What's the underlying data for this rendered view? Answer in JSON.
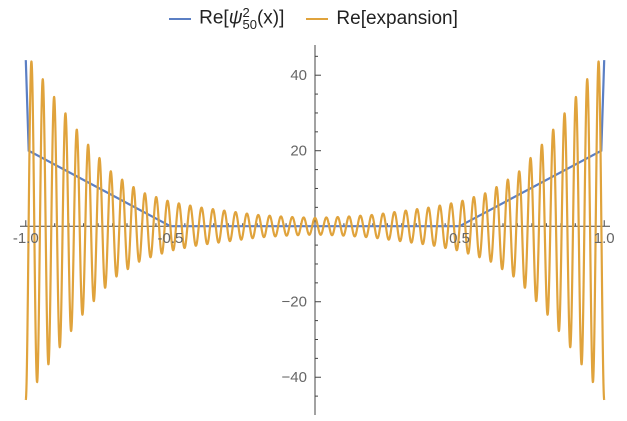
{
  "colors": {
    "series1": "#5b7fc4",
    "series2": "#e0a33c",
    "axis": "#444444",
    "tick_text": "#666666"
  },
  "chart_data": {
    "type": "line",
    "legend_position": "top-center",
    "xlim": [
      -1.02,
      1.02
    ],
    "ylim": [
      -50,
      48
    ],
    "grid": false,
    "x_ticks": [
      {
        "value": -1.0,
        "label": "-1.0"
      },
      {
        "value": -0.5,
        "label": "-0.5"
      },
      {
        "value": 0.5,
        "label": "0.5"
      },
      {
        "value": 1.0,
        "label": "1.0"
      }
    ],
    "y_ticks": [
      {
        "value": 40,
        "label": "40"
      },
      {
        "value": 20,
        "label": "20"
      },
      {
        "value": -20,
        "label": "−20"
      },
      {
        "value": -40,
        "label": "−40"
      }
    ],
    "series": [
      {
        "name_parts": {
          "prefix": "Re[",
          "symbol": "ψ",
          "sub": "50",
          "sup": "2",
          "suffix": "(x)]"
        },
        "color": "#5b7fc4",
        "x": [
          -1.0,
          -0.99,
          -0.5,
          0.0,
          0.5,
          0.99,
          1.0
        ],
        "y": [
          44,
          20,
          0,
          0,
          0,
          20,
          44
        ]
      },
      {
        "name": "Re[expansion]",
        "color": "#e0a33c",
        "oscillations": 51,
        "envelope_x": [
          -1.0,
          -0.95,
          -0.9,
          -0.8,
          -0.7,
          -0.6,
          -0.5,
          -0.4,
          -0.3,
          -0.2,
          -0.1,
          0.0,
          0.1,
          0.2,
          0.3,
          0.4,
          0.5,
          0.6,
          0.7,
          0.8,
          0.9,
          0.95,
          1.0
        ],
        "envelope_y": [
          46,
          40,
          34,
          23,
          14,
          9,
          6.5,
          5,
          4,
          3,
          2.5,
          2.2,
          2.5,
          3,
          4,
          5,
          6.5,
          9,
          14,
          23,
          34,
          40,
          46
        ]
      }
    ]
  }
}
